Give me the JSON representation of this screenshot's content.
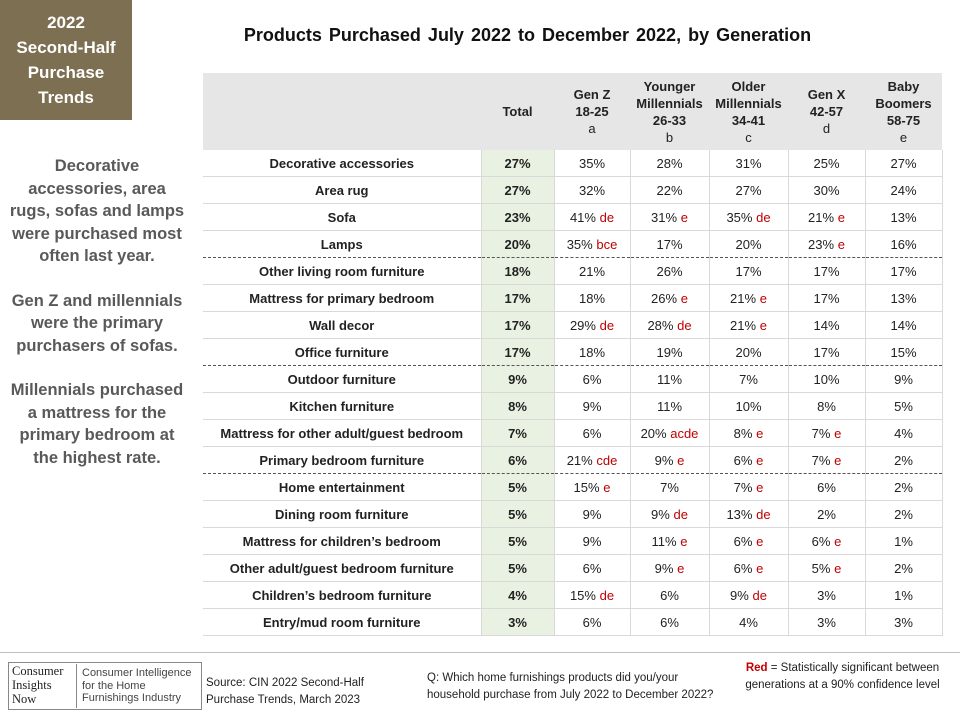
{
  "badge": {
    "lines": [
      "2022",
      "Second-Half",
      "Purchase",
      "Trends"
    ]
  },
  "title": "Products Purchased  July 2022 to December 2022, by Generation",
  "side_notes": [
    "Decorative accessories, area rugs, sofas and lamps were purchased most often last year.",
    "Gen Z and millennials were the primary purchasers of sofas.",
    "Millennials purchased a mattress for the primary bedroom at the highest rate."
  ],
  "chart_data": {
    "type": "table",
    "title": "Products Purchased  July 2022 to December 2022, by Generation",
    "columns": [
      {
        "name": "Total",
        "age": "",
        "letter": ""
      },
      {
        "name": "Gen Z",
        "age": "18-25",
        "letter": "a"
      },
      {
        "name": "Younger Millennials",
        "age": "26-33",
        "letter": "b"
      },
      {
        "name": "Older Millennials",
        "age": "34-41",
        "letter": "c"
      },
      {
        "name": "Gen X",
        "age": "42-57",
        "letter": "d"
      },
      {
        "name": "Baby Boomers",
        "age": "58-75",
        "letter": "e"
      }
    ],
    "rows": [
      {
        "label": "Decorative accessories",
        "total": "27%",
        "cells": [
          [
            "35%",
            ""
          ],
          [
            "28%",
            ""
          ],
          [
            "31%",
            ""
          ],
          [
            "25%",
            ""
          ],
          [
            "27%",
            ""
          ]
        ],
        "sep": false
      },
      {
        "label": "Area rug",
        "total": "27%",
        "cells": [
          [
            "32%",
            ""
          ],
          [
            "22%",
            ""
          ],
          [
            "27%",
            ""
          ],
          [
            "30%",
            ""
          ],
          [
            "24%",
            ""
          ]
        ],
        "sep": false
      },
      {
        "label": "Sofa",
        "total": "23%",
        "cells": [
          [
            "41%",
            "de"
          ],
          [
            "31%",
            "e"
          ],
          [
            "35%",
            "de"
          ],
          [
            "21%",
            "e"
          ],
          [
            "13%",
            ""
          ]
        ],
        "sep": false
      },
      {
        "label": "Lamps",
        "total": "20%",
        "cells": [
          [
            "35%",
            "bce"
          ],
          [
            "17%",
            ""
          ],
          [
            "20%",
            ""
          ],
          [
            "23%",
            "e"
          ],
          [
            "16%",
            ""
          ]
        ],
        "sep": true
      },
      {
        "label": "Other living room furniture",
        "total": "18%",
        "cells": [
          [
            "21%",
            ""
          ],
          [
            "26%",
            ""
          ],
          [
            "17%",
            ""
          ],
          [
            "17%",
            ""
          ],
          [
            "17%",
            ""
          ]
        ],
        "sep": false
      },
      {
        "label": "Mattress for primary bedroom",
        "total": "17%",
        "cells": [
          [
            "18%",
            ""
          ],
          [
            "26%",
            "e"
          ],
          [
            "21%",
            "e"
          ],
          [
            "17%",
            ""
          ],
          [
            "13%",
            ""
          ]
        ],
        "sep": false
      },
      {
        "label": "Wall decor",
        "total": "17%",
        "cells": [
          [
            "29%",
            "de"
          ],
          [
            "28%",
            "de"
          ],
          [
            "21%",
            "e"
          ],
          [
            "14%",
            ""
          ],
          [
            "14%",
            ""
          ]
        ],
        "sep": false
      },
      {
        "label": "Office furniture",
        "total": "17%",
        "cells": [
          [
            "18%",
            ""
          ],
          [
            "19%",
            ""
          ],
          [
            "20%",
            ""
          ],
          [
            "17%",
            ""
          ],
          [
            "15%",
            ""
          ]
        ],
        "sep": true
      },
      {
        "label": "Outdoor furniture",
        "total": "9%",
        "cells": [
          [
            "6%",
            ""
          ],
          [
            "11%",
            ""
          ],
          [
            "7%",
            ""
          ],
          [
            "10%",
            ""
          ],
          [
            "9%",
            ""
          ]
        ],
        "sep": false
      },
      {
        "label": "Kitchen furniture",
        "total": "8%",
        "cells": [
          [
            "9%",
            ""
          ],
          [
            "11%",
            ""
          ],
          [
            "10%",
            ""
          ],
          [
            "8%",
            ""
          ],
          [
            "5%",
            ""
          ]
        ],
        "sep": false
      },
      {
        "label": "Mattress for other adult/guest bedroom",
        "total": "7%",
        "cells": [
          [
            "6%",
            ""
          ],
          [
            "20%",
            "acde"
          ],
          [
            "8%",
            "e"
          ],
          [
            "7%",
            "e"
          ],
          [
            "4%",
            ""
          ]
        ],
        "sep": false
      },
      {
        "label": "Primary bedroom furniture",
        "total": "6%",
        "cells": [
          [
            "21%",
            "cde"
          ],
          [
            "9%",
            "e"
          ],
          [
            "6%",
            "e"
          ],
          [
            "7%",
            "e"
          ],
          [
            "2%",
            ""
          ]
        ],
        "sep": true
      },
      {
        "label": "Home entertainment",
        "total": "5%",
        "cells": [
          [
            "15%",
            "e"
          ],
          [
            "7%",
            ""
          ],
          [
            "7%",
            "e"
          ],
          [
            "6%",
            ""
          ],
          [
            "2%",
            ""
          ]
        ],
        "sep": false
      },
      {
        "label": "Dining room furniture",
        "total": "5%",
        "cells": [
          [
            "9%",
            ""
          ],
          [
            "9%",
            "de"
          ],
          [
            "13%",
            "de"
          ],
          [
            "2%",
            ""
          ],
          [
            "2%",
            ""
          ]
        ],
        "sep": false
      },
      {
        "label": "Mattress for children’s bedroom",
        "total": "5%",
        "cells": [
          [
            "9%",
            ""
          ],
          [
            "11%",
            "e"
          ],
          [
            "6%",
            "e"
          ],
          [
            "6%",
            "e"
          ],
          [
            "1%",
            ""
          ]
        ],
        "sep": false
      },
      {
        "label": "Other adult/guest bedroom furniture",
        "total": "5%",
        "cells": [
          [
            "6%",
            ""
          ],
          [
            "9%",
            "e"
          ],
          [
            "6%",
            "e"
          ],
          [
            "5%",
            "e"
          ],
          [
            "2%",
            ""
          ]
        ],
        "sep": false
      },
      {
        "label": "Children’s bedroom furniture",
        "total": "4%",
        "cells": [
          [
            "15%",
            "de"
          ],
          [
            "6%",
            ""
          ],
          [
            "9%",
            "de"
          ],
          [
            "3%",
            ""
          ],
          [
            "1%",
            ""
          ]
        ],
        "sep": false
      },
      {
        "label": "Entry/mud room furniture",
        "total": "3%",
        "cells": [
          [
            "6%",
            ""
          ],
          [
            "6%",
            ""
          ],
          [
            "4%",
            ""
          ],
          [
            "3%",
            ""
          ],
          [
            "3%",
            ""
          ]
        ],
        "sep": false
      }
    ]
  },
  "footer": {
    "logo_lines": [
      "Consumer",
      "Insights",
      "Now"
    ],
    "logo_tagline": [
      "Consumer Intelligence",
      "for the Home",
      "Furnishings Industry"
    ],
    "source_lines": [
      "Source:  CIN 2022 Second-Half",
      "Purchase Trends, March 2023"
    ],
    "question_lines": [
      "Q: Which home furnishings products did you/your",
      "household purchase from July 2022 to December  2022?"
    ],
    "legend_red": "Red",
    "legend_rest": " = Statistically significant between  generations at a 90% confidence level"
  },
  "colors": {
    "badge": "#7d6f51",
    "header_bg": "#e6e6e6",
    "total_bg": "#e9f2e2",
    "significance": "#c00000"
  }
}
